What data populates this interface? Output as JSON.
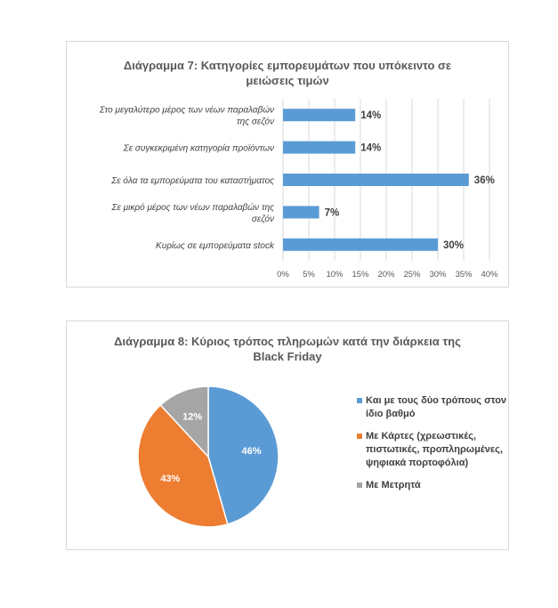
{
  "chart_data": [
    {
      "type": "bar",
      "orientation": "horizontal",
      "title_lines": [
        "Διάγραμμα 7: Κατηγορίες εμπορευμάτων που υπόκειντο σε",
        "μειώσεις τιμών"
      ],
      "categories": [
        [
          "Στο μεγαλύτερο μέρος των νέων παραλαβών",
          "της σεζόν"
        ],
        [
          "Σε συγκεκριμένη κατηγορία προϊόντων"
        ],
        [
          "Σε όλα τα εμπορεύματα του καταστήματος"
        ],
        [
          "Σε μικρό μέρος των νέων παραλαβών της",
          "σεζόν"
        ],
        [
          "Κυρίως σε εμπορεύματα stock"
        ]
      ],
      "values": [
        14,
        14,
        36,
        7,
        30
      ],
      "value_labels": [
        "14%",
        "14%",
        "36%",
        "7%",
        "30%"
      ],
      "xlim": [
        0,
        40
      ],
      "xticks": [
        "0%",
        "5%",
        "10%",
        "15%",
        "20%",
        "25%",
        "30%",
        "35%",
        "40%"
      ],
      "bar_color": "#5b9bd5",
      "grid": true
    },
    {
      "type": "pie",
      "title_lines": [
        "Διάγραμμα 8: Κύριος τρόπος πληρωμών κατά την διάρκεια της",
        "Black Friday"
      ],
      "slices": [
        {
          "label_lines": [
            "Και με τους δύο τρόπους στον",
            "ίδιο βαθμό"
          ],
          "value": 46,
          "value_label": "46%",
          "color": "#5b9bd5"
        },
        {
          "label_lines": [
            "Με Κάρτες (χρεωστικές,",
            "πιστωτικές, προπληρωμένες,",
            "ψηφιακά πορτοφόλια)"
          ],
          "value": 43,
          "value_label": "43%",
          "color": "#ed7d31"
        },
        {
          "label_lines": [
            "Με Μετρητά"
          ],
          "value": 12,
          "value_label": "12%",
          "color": "#a5a5a5"
        }
      ],
      "legend_position": "right"
    }
  ]
}
